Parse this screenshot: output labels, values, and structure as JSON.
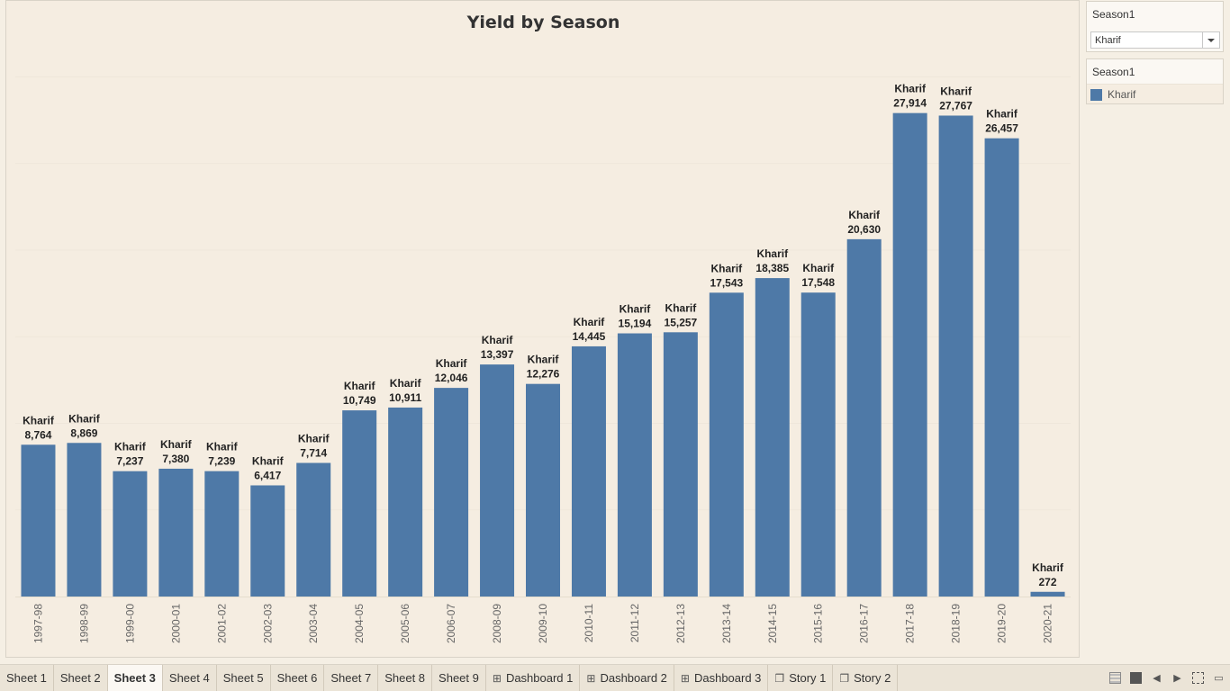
{
  "chart_data": {
    "type": "bar",
    "title": "Yield by Season",
    "categories": [
      "1997-98",
      "1998-99",
      "1999-00",
      "2000-01",
      "2001-02",
      "2002-03",
      "2003-04",
      "2004-05",
      "2005-06",
      "2006-07",
      "2008-09",
      "2009-10",
      "2010-11",
      "2011-12",
      "2012-13",
      "2013-14",
      "2014-15",
      "2015-16",
      "2016-17",
      "2017-18",
      "2018-19",
      "2019-20",
      "2020-21"
    ],
    "series": [
      {
        "name": "Kharif",
        "values": [
          8764,
          8869,
          7237,
          7380,
          7239,
          6417,
          7714,
          10749,
          10911,
          12046,
          13397,
          12276,
          14445,
          15194,
          15257,
          17543,
          18385,
          17548,
          20630,
          27914,
          27767,
          26457,
          272
        ],
        "labels": [
          "8,764",
          "8,869",
          "7,237",
          "7,380",
          "7,239",
          "6,417",
          "7,714",
          "10,749",
          "10,911",
          "12,046",
          "13,397",
          "12,276",
          "14,445",
          "15,194",
          "15,257",
          "17,543",
          "18,385",
          "17,548",
          "20,630",
          "27,914",
          "27,767",
          "26,457",
          "272"
        ]
      }
    ],
    "xlabel": "",
    "ylabel": "",
    "ylim": [
      0,
      32000
    ],
    "color": "#4e79a7",
    "grid": true,
    "legend": "right"
  },
  "filter": {
    "title": "Season1",
    "selected": "Kharif"
  },
  "legend": {
    "title": "Season1",
    "items": [
      {
        "label": "Kharif",
        "color": "#4e79a7"
      }
    ]
  },
  "tabs": [
    {
      "label": "Sheet 1",
      "icon": ""
    },
    {
      "label": "Sheet 2",
      "icon": ""
    },
    {
      "label": "Sheet 3",
      "icon": "",
      "active": true
    },
    {
      "label": "Sheet 4",
      "icon": ""
    },
    {
      "label": "Sheet 5",
      "icon": ""
    },
    {
      "label": "Sheet 6",
      "icon": ""
    },
    {
      "label": "Sheet 7",
      "icon": ""
    },
    {
      "label": "Sheet 8",
      "icon": ""
    },
    {
      "label": "Sheet 9",
      "icon": ""
    },
    {
      "label": "Dashboard 1",
      "icon": "dashboard-icon"
    },
    {
      "label": "Dashboard 2",
      "icon": "dashboard-icon"
    },
    {
      "label": "Dashboard 3",
      "icon": "dashboard-icon"
    },
    {
      "label": "Story 1",
      "icon": "story-icon"
    },
    {
      "label": "Story 2",
      "icon": "story-icon"
    }
  ]
}
